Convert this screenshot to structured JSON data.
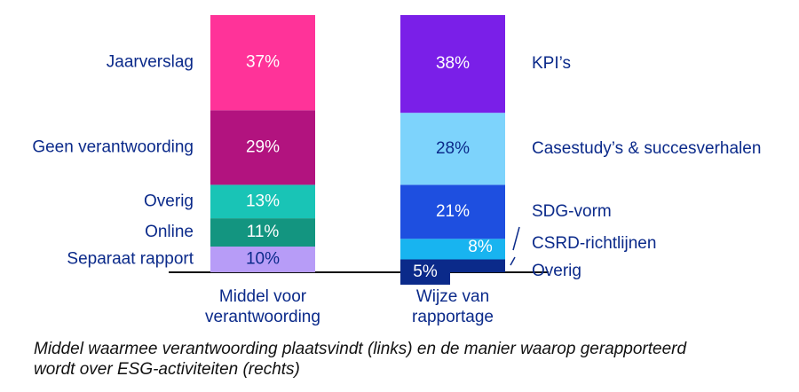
{
  "chart_data": {
    "type": "bar",
    "stacked": true,
    "ylim": [
      0,
      100
    ],
    "value_format": "percent",
    "categories": [
      {
        "label_lines": [
          "Middel voor",
          "verantwoording"
        ],
        "segments": [
          {
            "name": "Separaat rapport",
            "value": 10,
            "label": "10%",
            "color": "#b79cf7",
            "text_color": "#0b2a8a"
          },
          {
            "name": "Online",
            "value": 11,
            "label": "11%",
            "color": "#139580",
            "text_color": "#ffffff"
          },
          {
            "name": "Overig",
            "value": 13,
            "label": "13%",
            "color": "#19c4b6",
            "text_color": "#ffffff"
          },
          {
            "name": "Geen verantwoording",
            "value": 29,
            "label": "29%",
            "color": "#b2137f",
            "text_color": "#ffffff"
          },
          {
            "name": "Jaarverslag",
            "value": 37,
            "label": "37%",
            "color": "#ff3399",
            "text_color": "#ffffff"
          }
        ]
      },
      {
        "label_lines": [
          "Wijze van",
          "rapportage"
        ],
        "segments": [
          {
            "name": "Overig",
            "value": 5,
            "label": "5%",
            "color": "#0b2a8a",
            "text_color": "#ffffff"
          },
          {
            "name": "CSRD-richtlijnen",
            "value": 8,
            "label": "8%",
            "color": "#18b4f0",
            "text_color": "#ffffff"
          },
          {
            "name": "SDG-vorm",
            "value": 21,
            "label": "21%",
            "color": "#1e4fe0",
            "text_color": "#ffffff"
          },
          {
            "name": "Casestudy’s & succesverhalen",
            "value": 28,
            "label": "28%",
            "color": "#7dd3fc",
            "text_color": "#0b2a8a"
          },
          {
            "name": "KPI’s",
            "value": 38,
            "label": "38%",
            "color": "#7a1fe8",
            "text_color": "#ffffff"
          }
        ]
      }
    ]
  },
  "caption": "Middel waarmee verantwoording plaatsvindt (links) en de manier waarop gerapporteerd wordt over ESG-activiteiten (rechts)",
  "colors": {
    "label_text": "#0b2a8a",
    "axis_line": "#111111"
  }
}
